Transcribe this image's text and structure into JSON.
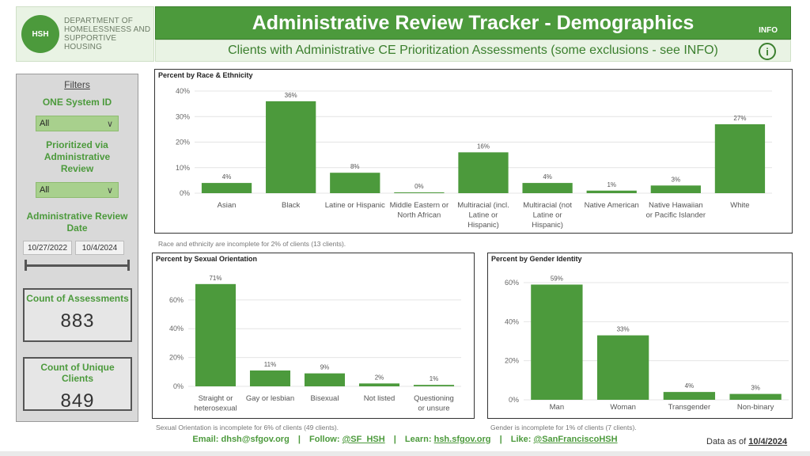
{
  "header": {
    "logo_text_line1": "Department of",
    "logo_text_line2": "Homelessness and",
    "logo_text_line3": "Supportive Housing",
    "logo_mark": "HSH",
    "title": "Administrative Review Tracker - Demographics",
    "subtitle": "Clients with Administrative CE Prioritization Assessments (some exclusions - see INFO)",
    "info_label": "INFO",
    "info_icon_glyph": "i"
  },
  "filters": {
    "title": "Filters",
    "one_system_label": "ONE System ID",
    "one_system_value": "All",
    "prioritized_label_1": "Prioritized via",
    "prioritized_label_2": "Administrative",
    "prioritized_label_3": "Review",
    "prioritized_value": "All",
    "date_label_1": "Administrative Review",
    "date_label_2": "Date",
    "date_start": "10/27/2022",
    "date_end": "10/4/2024",
    "count_assessments_label": "Count of Assessments",
    "count_assessments_value": "883",
    "count_clients_label": "Count of Unique Clients",
    "count_clients_value": "849"
  },
  "notes": {
    "race": "Race and ethnicity are incomplete for 2% of clients (13 clients).",
    "sexual": "Sexual Orientation is incomplete for 6% of clients (49 clients).",
    "gender": "Gender is incomplete for 1% of clients (7 clients)."
  },
  "footer": {
    "email_label": "Email:",
    "email": "dhsh@sfgov.org",
    "follow_label": "Follow:",
    "follow": "@SF_HSH",
    "learn_label": "Learn:",
    "learn": "hsh.sfgov.org",
    "like_label": "Like:",
    "like": "@SanFranciscoHSH",
    "sep": "|",
    "asof_label": "Data as of",
    "asof_date": "10/4/2024"
  },
  "colors": {
    "accent": "#4c9a3c",
    "accent_light": "#e9f3e4",
    "dropdown": "#a8d08d"
  },
  "chart_data": [
    {
      "type": "bar",
      "title": "Percent by Race & Ethnicity",
      "categories": [
        [
          "Asian"
        ],
        [
          "Black"
        ],
        [
          "Latine or Hispanic"
        ],
        [
          "Middle Eastern or",
          "North African"
        ],
        [
          "Multiracial (incl.",
          "Latine or",
          "Hispanic)"
        ],
        [
          "Multiracial (not",
          "Latine or",
          "Hispanic)"
        ],
        [
          "Native American"
        ],
        [
          "Native Hawaiian",
          "or Pacific Islander"
        ],
        [
          "White"
        ]
      ],
      "values": [
        4,
        36,
        8,
        0,
        16,
        4,
        1,
        3,
        27
      ],
      "value_labels": [
        "4%",
        "36%",
        "8%",
        "0%",
        "16%",
        "4%",
        "1%",
        "3%",
        "27%"
      ],
      "yticks": [
        0,
        10,
        20,
        30,
        40
      ],
      "ytick_labels": [
        "0%",
        "10%",
        "20%",
        "30%",
        "40%"
      ],
      "ylim": [
        0,
        40
      ],
      "grid": true
    },
    {
      "type": "bar",
      "title": "Percent by Sexual Orientation",
      "categories": [
        [
          "Straight or",
          "heterosexual"
        ],
        [
          "Gay or lesbian"
        ],
        [
          "Bisexual"
        ],
        [
          "Not listed"
        ],
        [
          "Questioning",
          "or unsure"
        ]
      ],
      "values": [
        71,
        11,
        9,
        2,
        1
      ],
      "value_labels": [
        "71%",
        "11%",
        "9%",
        "2%",
        "1%"
      ],
      "yticks": [
        0,
        20,
        40,
        60
      ],
      "ytick_labels": [
        "0%",
        "20%",
        "40%",
        "60%"
      ],
      "ylim": [
        0,
        72
      ],
      "grid": true
    },
    {
      "type": "bar",
      "title": "Percent by Gender Identity",
      "categories": [
        [
          "Man"
        ],
        [
          "Woman"
        ],
        [
          "Transgender"
        ],
        [
          "Non-binary"
        ]
      ],
      "values": [
        59,
        33,
        4,
        3
      ],
      "value_labels": [
        "59%",
        "33%",
        "4%",
        "3%"
      ],
      "yticks": [
        0,
        20,
        40,
        60
      ],
      "ytick_labels": [
        "0%",
        "20%",
        "40%",
        "60%"
      ],
      "ylim": [
        0,
        60
      ],
      "grid": true
    }
  ]
}
